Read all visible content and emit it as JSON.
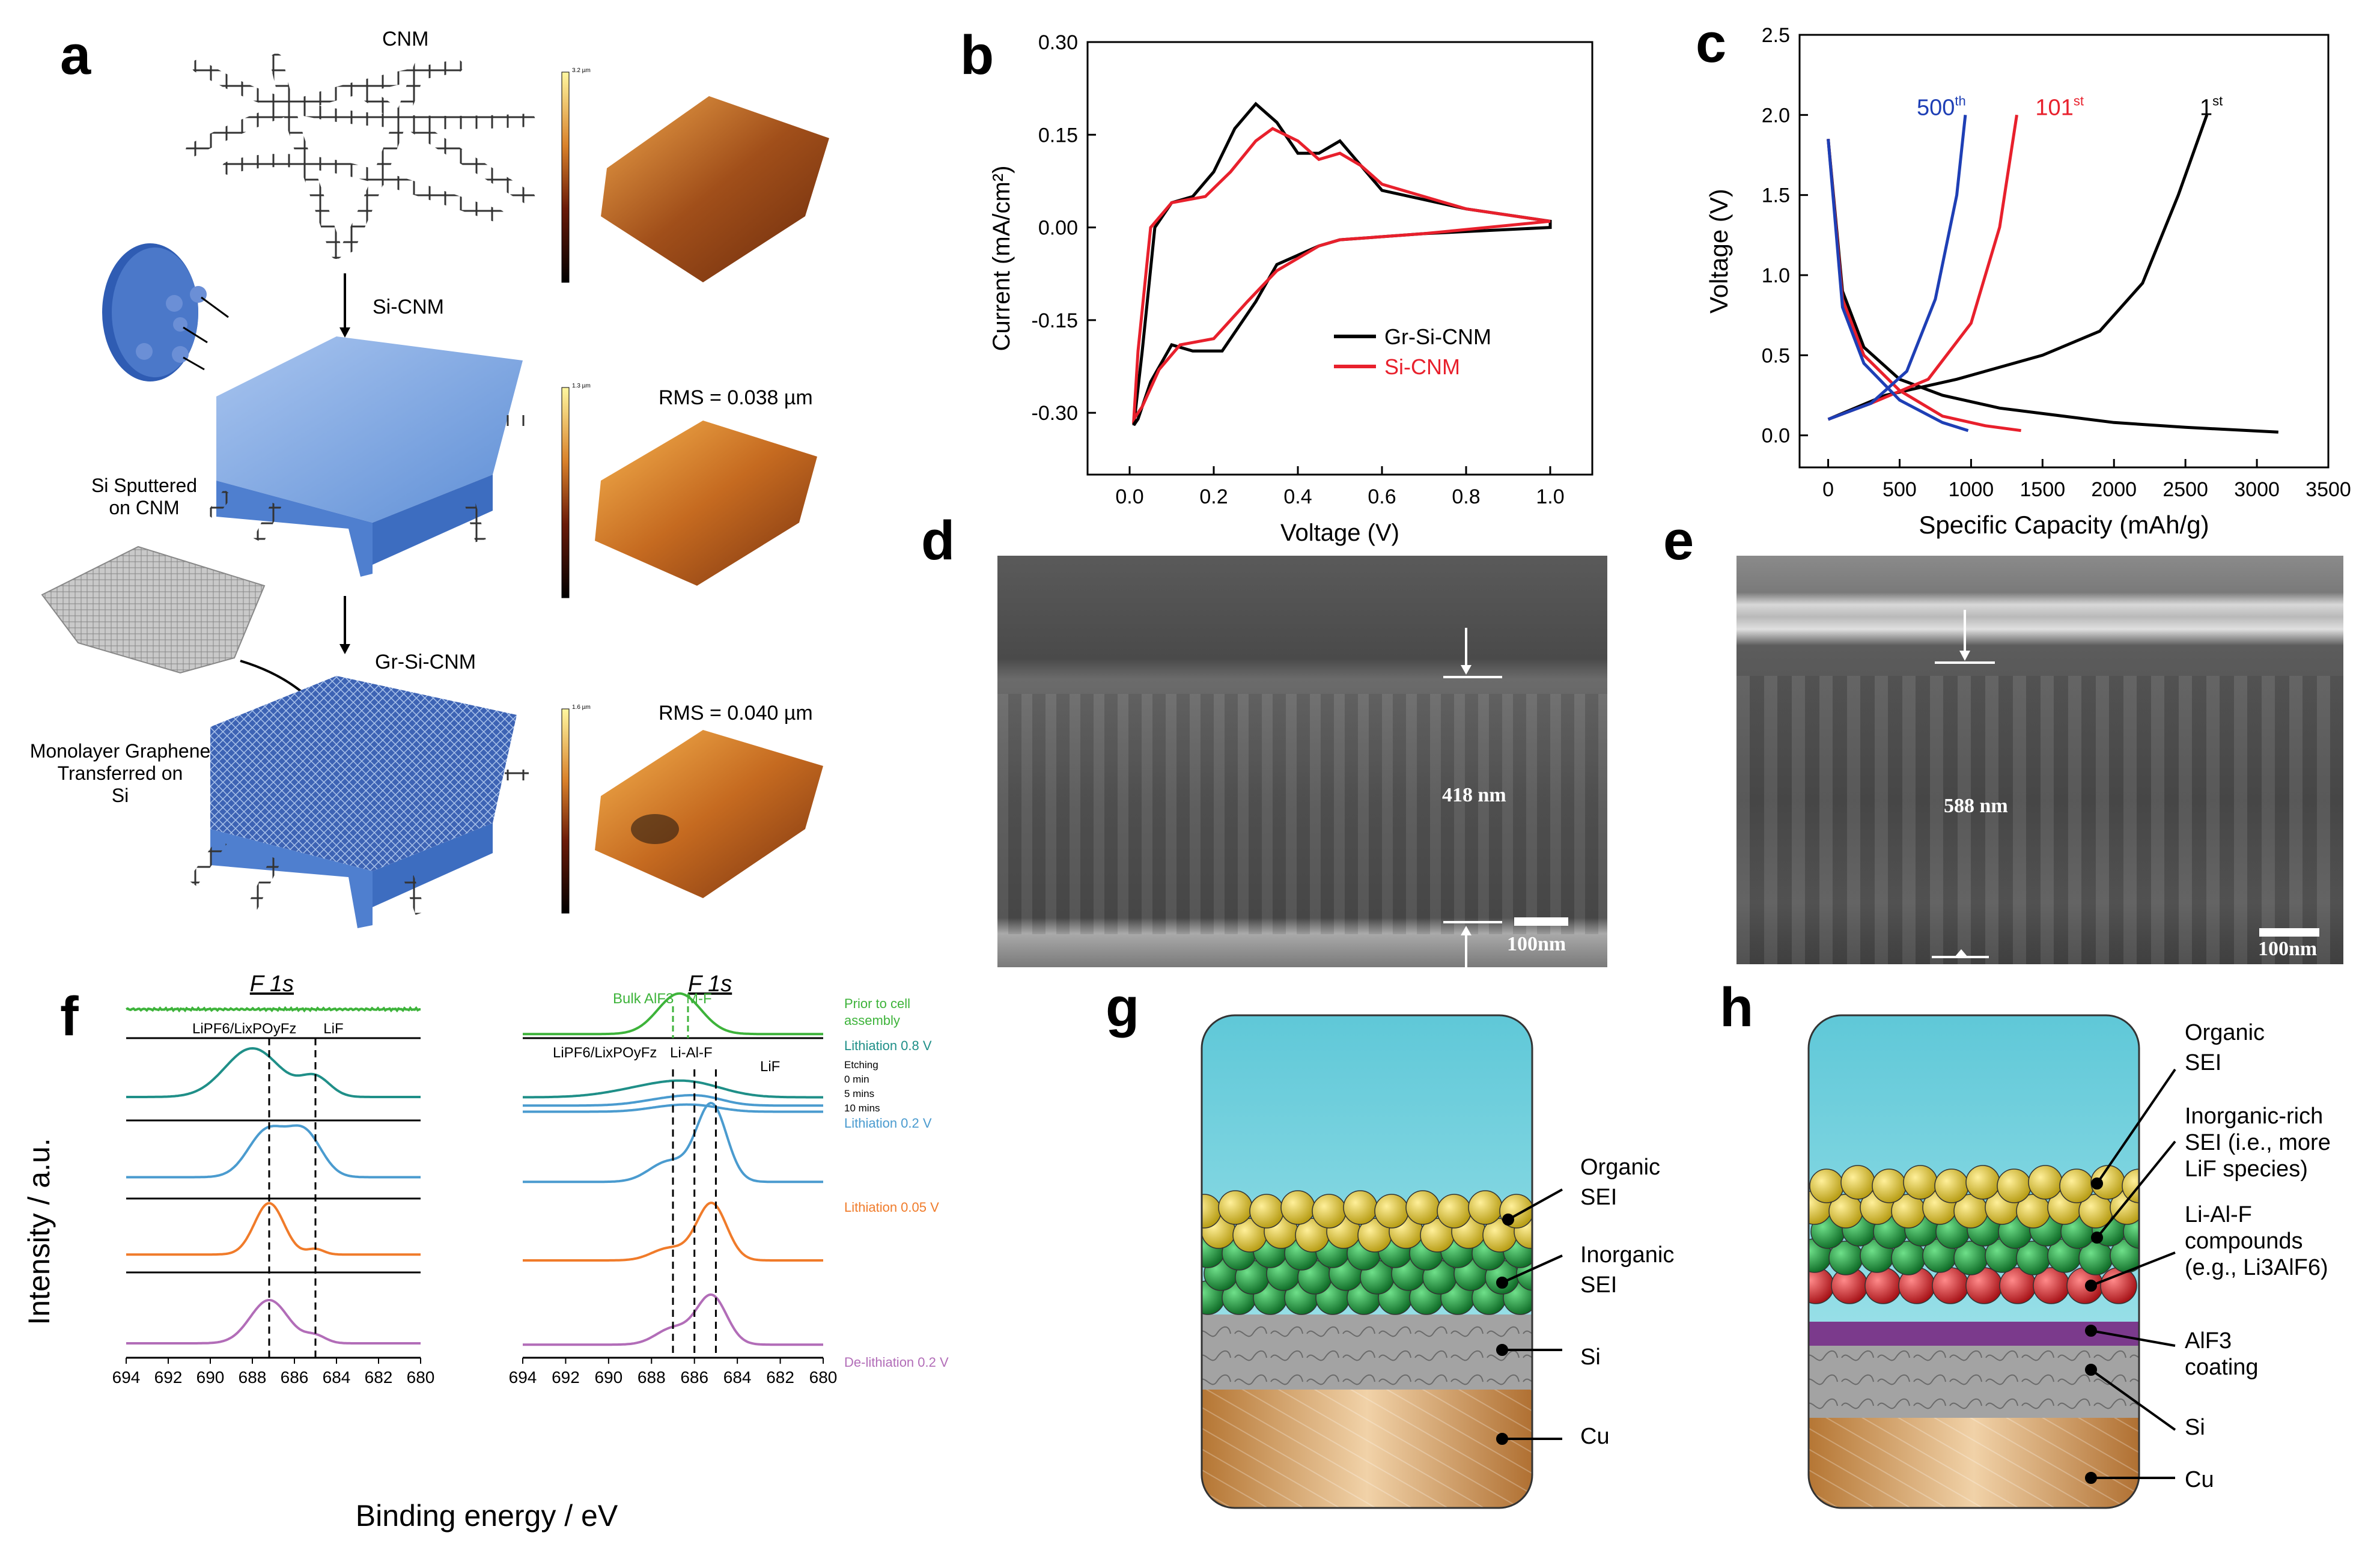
{
  "panel_letters": {
    "a": "a",
    "b": "b",
    "c": "c",
    "d": "d",
    "e": "e",
    "f": "f",
    "g": "g",
    "h": "h"
  },
  "panel_a": {
    "cnm_label": "CNM",
    "si_cnm_label": "Si-CNM",
    "gr_si_cnm_label": "Gr-Si-CNM",
    "si_sputter_label_1": "Si Sputtered",
    "si_sputter_label_2": "on CNM",
    "graphene_label_1": "Monolayer Graphene",
    "graphene_label_2": "Transferred on",
    "graphene_label_3": "Si",
    "rms_1": "RMS = 0.038 µm",
    "rms_2": "RMS = 0.040 µm",
    "colorbar_1_top": "3.2 µm",
    "colorbar_2_top": "1.3 µm",
    "colorbar_3_top": "1.6 µm"
  },
  "chart_data": [
    {
      "id": "b",
      "type": "line",
      "xlabel": "Voltage (V)",
      "ylabel": "Current (mA/cm²)",
      "xlim": [
        -0.1,
        1.1
      ],
      "ylim": [
        -0.4,
        0.3
      ],
      "xticks": [
        "0.0",
        "0.2",
        "0.4",
        "0.6",
        "0.8",
        "1.0"
      ],
      "yticks": [
        "0.30",
        "0.15",
        "0.00",
        "-0.15",
        "-0.30"
      ],
      "series": [
        {
          "name": "Gr-Si-CNM",
          "color": "#000000",
          "x": [
            1.0,
            0.7,
            0.5,
            0.45,
            0.35,
            0.3,
            0.22,
            0.15,
            0.1,
            0.05,
            0.02,
            0.01,
            0.03,
            0.06,
            0.1,
            0.15,
            0.2,
            0.25,
            0.3,
            0.35,
            0.4,
            0.45,
            0.5,
            0.55,
            0.6,
            0.8,
            1.0
          ],
          "y": [
            0.0,
            -0.01,
            -0.02,
            -0.03,
            -0.06,
            -0.12,
            -0.2,
            -0.2,
            -0.19,
            -0.25,
            -0.31,
            -0.32,
            -0.2,
            0.0,
            0.04,
            0.05,
            0.09,
            0.16,
            0.2,
            0.17,
            0.12,
            0.12,
            0.14,
            0.1,
            0.06,
            0.03,
            0.01
          ]
        },
        {
          "name": "Si-CNM",
          "color": "#e8202c",
          "x": [
            1.0,
            0.7,
            0.5,
            0.45,
            0.35,
            0.28,
            0.2,
            0.12,
            0.07,
            0.03,
            0.01,
            0.02,
            0.05,
            0.1,
            0.18,
            0.24,
            0.3,
            0.34,
            0.4,
            0.45,
            0.5,
            0.55,
            0.6,
            0.8,
            1.0
          ],
          "y": [
            0.01,
            -0.01,
            -0.02,
            -0.03,
            -0.07,
            -0.12,
            -0.18,
            -0.19,
            -0.23,
            -0.29,
            -0.31,
            -0.2,
            0.0,
            0.04,
            0.05,
            0.09,
            0.14,
            0.16,
            0.14,
            0.11,
            0.12,
            0.1,
            0.07,
            0.03,
            0.01
          ]
        }
      ]
    },
    {
      "id": "c",
      "type": "line",
      "xlabel": "Specific Capacity (mAh/g)",
      "ylabel": "Voltage (V)",
      "xlim": [
        -200,
        3500
      ],
      "ylim": [
        -0.2,
        2.5
      ],
      "xticks": [
        "0",
        "500",
        "1000",
        "1500",
        "2000",
        "2500",
        "3000",
        "3500"
      ],
      "yticks": [
        "0.0",
        "0.5",
        "1.0",
        "1.5",
        "2.0",
        "2.5"
      ],
      "series": [
        {
          "name": "1st",
          "color": "#000000",
          "dis_x": [
            0,
            100,
            250,
            500,
            800,
            1200,
            2000,
            2500,
            3150
          ],
          "dis_y": [
            1.85,
            0.9,
            0.55,
            0.35,
            0.25,
            0.17,
            0.08,
            0.05,
            0.02
          ],
          "ch_x": [
            0,
            400,
            900,
            1500,
            1900,
            2200,
            2450,
            2650
          ],
          "ch_y": [
            0.1,
            0.25,
            0.35,
            0.5,
            0.65,
            0.95,
            1.5,
            2.0
          ]
        },
        {
          "name": "101st",
          "color": "#e8202c",
          "dis_x": [
            0,
            100,
            250,
            500,
            800,
            1100,
            1350
          ],
          "dis_y": [
            1.85,
            0.85,
            0.5,
            0.28,
            0.12,
            0.06,
            0.03
          ],
          "ch_x": [
            0,
            300,
            700,
            1000,
            1200,
            1320
          ],
          "ch_y": [
            0.1,
            0.2,
            0.35,
            0.7,
            1.3,
            2.0
          ]
        },
        {
          "name": "500th",
          "color": "#1e3fb5",
          "dis_x": [
            0,
            100,
            250,
            500,
            800,
            980
          ],
          "dis_y": [
            1.85,
            0.8,
            0.45,
            0.22,
            0.08,
            0.03
          ],
          "ch_x": [
            0,
            300,
            550,
            750,
            900,
            960
          ],
          "ch_y": [
            0.1,
            0.2,
            0.4,
            0.85,
            1.5,
            2.0
          ]
        }
      ],
      "labels": {
        "l500": "500",
        "l500sup": "th",
        "l101": "101",
        "l101sup": "st",
        "l1": "1",
        "l1sup": "st"
      }
    },
    {
      "id": "f",
      "type": "line",
      "xlabel": "Binding energy / eV",
      "ylabel": "Intensity / a.u.",
      "xticks": [
        "694",
        "692",
        "690",
        "688",
        "686",
        "684",
        "682",
        "680"
      ],
      "title_left": "F 1s",
      "title_right": "F 1s"
    }
  ],
  "panel_d": {
    "thickness": "418 nm",
    "scale": "100nm"
  },
  "panel_e": {
    "thickness": "588 nm",
    "scale": "100nm"
  },
  "panel_f": {
    "left_peak_1": "LiPF6/LixPOyFz",
    "left_peak_2": "LiF",
    "right_peak_bulk": "Bulk AlF3",
    "right_peak_mf": "M-F",
    "right_peak_1": "LiPF6/LixPOyFz",
    "right_peak_lialf": "Li-Al-F",
    "right_peak_lif": "LiF",
    "cond_prior_1": "Prior to cell",
    "cond_prior_2": "assembly",
    "cond_l08": "Lithiation 0.8 V",
    "cond_etching": "Etching",
    "cond_0min": "0 min",
    "cond_5min": "5 mins",
    "cond_10min": "10 mins",
    "cond_l02": "Lithiation 0.2 V",
    "cond_l005": "Lithiation 0.05 V",
    "cond_dl02": "De-lithiation 0.2 V"
  },
  "panel_g": {
    "organic_1": "Organic",
    "organic_2": "SEI",
    "inorganic_1": "Inorganic",
    "inorganic_2": "SEI",
    "si": "Si",
    "cu": "Cu"
  },
  "panel_h": {
    "organic_1": "Organic",
    "organic_2": "SEI",
    "inorg_1": "Inorganic-rich",
    "inorg_2": "SEI (i.e., more",
    "inorg_3": "LiF species)",
    "lialf_1": "Li-Al-F",
    "lialf_2": "compounds",
    "lialf_3": "(e.g., Li3AlF6)",
    "alf_1": "AlF3",
    "alf_2": "coating",
    "si": "Si",
    "cu": "Cu"
  },
  "colors": {
    "red": "#e8202c",
    "blue": "#1e3fb5",
    "green_spec": "#3db33a",
    "teal": "#1f8f88",
    "lightblue": "#4a9bcf",
    "orange": "#f07b2a",
    "purple": "#b26db8",
    "sky": "#7fd3e0",
    "gold": "#d9c026",
    "seigreen": "#1b8a3a",
    "sei_red": "#d8262b",
    "alf_purple": "#7b3a8c",
    "si_gray": "#9c9c9c",
    "cu": "#c58848"
  }
}
